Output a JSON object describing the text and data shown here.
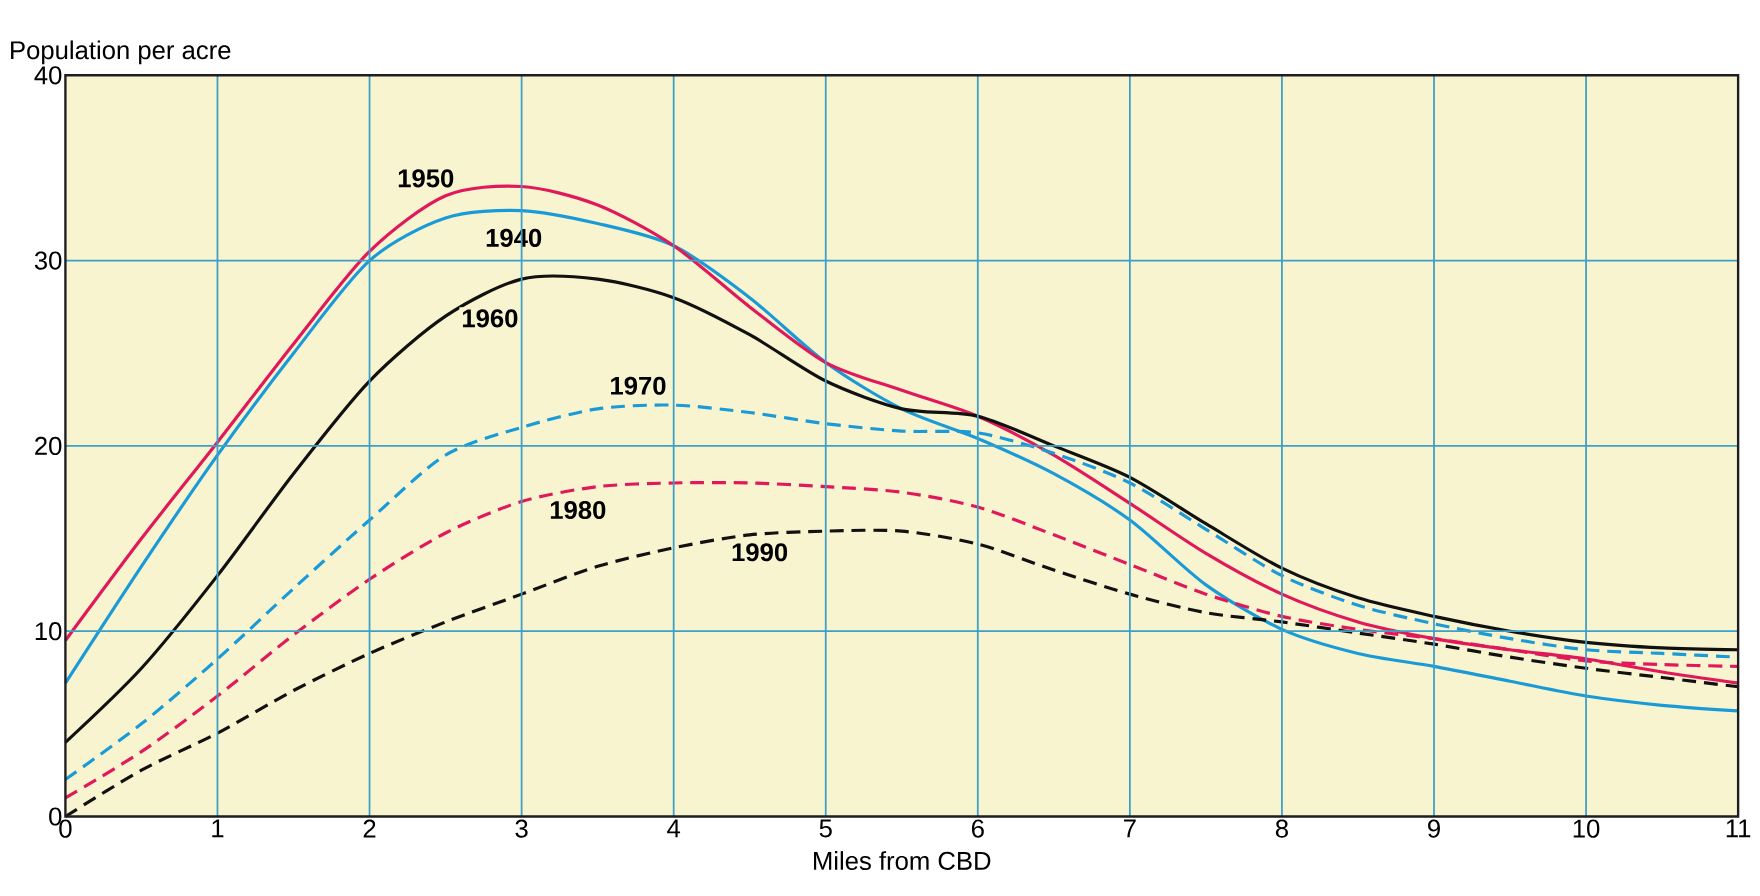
{
  "chart_data": {
    "type": "line",
    "x": [
      0,
      0.5,
      1,
      1.5,
      2,
      2.5,
      3,
      3.5,
      4,
      4.5,
      5,
      5.5,
      6,
      6.5,
      7,
      7.5,
      8,
      8.5,
      9,
      9.5,
      10,
      10.5,
      11
    ],
    "xlabel": "Miles from CBD",
    "ylabel": "Population per acre",
    "xlim": [
      0,
      11
    ],
    "ylim": [
      0,
      40
    ],
    "xticks": [
      0,
      1,
      2,
      3,
      4,
      5,
      6,
      7,
      8,
      9,
      10,
      11
    ],
    "yticks": [
      0,
      10,
      20,
      30,
      40
    ],
    "grid": true,
    "legend": false,
    "marker": "none",
    "series": [
      {
        "name": "1940",
        "color": "#1a9ad6",
        "line_style": "solid",
        "values": [
          7.2,
          13.5,
          19.5,
          25,
          30,
          32.3,
          32.7,
          32,
          30.8,
          28,
          24.5,
          22,
          20.4,
          18.5,
          16,
          12.5,
          10.1,
          8.8,
          8.1,
          7.3,
          6.5,
          6,
          5.7
        ]
      },
      {
        "name": "1950",
        "color": "#e0195a",
        "line_style": "solid",
        "values": [
          9.5,
          15,
          20.2,
          25.5,
          30.5,
          33.5,
          34,
          33,
          30.8,
          27.5,
          24.5,
          23,
          21.6,
          19.5,
          16.9,
          14.2,
          12,
          10.5,
          9.6,
          9,
          8.5,
          7.8,
          7.2
        ]
      },
      {
        "name": "1960",
        "color": "#111111",
        "line_style": "solid",
        "values": [
          4,
          8,
          13,
          18.5,
          23.5,
          27,
          29,
          29,
          28,
          26,
          23.5,
          22,
          21.6,
          20,
          18.3,
          15.8,
          13.4,
          11.8,
          10.8,
          10,
          9.4,
          9.1,
          9
        ]
      },
      {
        "name": "1970",
        "color": "#1a9ad6",
        "line_style": "dashed",
        "values": [
          2,
          5,
          8.5,
          12.3,
          16,
          19.5,
          21,
          22,
          22.2,
          21.8,
          21.2,
          20.8,
          20.7,
          19.6,
          18,
          15.5,
          13,
          11.4,
          10.4,
          9.6,
          9,
          8.8,
          8.6
        ]
      },
      {
        "name": "1980",
        "color": "#e0195a",
        "line_style": "dashed",
        "values": [
          1,
          3.5,
          6.5,
          9.8,
          12.8,
          15.3,
          17,
          17.8,
          18,
          18,
          17.8,
          17.5,
          16.7,
          15.2,
          13.6,
          12,
          10.8,
          10.1,
          9.6,
          9,
          8.4,
          8.2,
          8.1
        ]
      },
      {
        "name": "1990",
        "color": "#111111",
        "line_style": "dashed",
        "values": [
          0,
          2.5,
          4.5,
          6.8,
          8.8,
          10.5,
          12,
          13.5,
          14.5,
          15.2,
          15.4,
          15.4,
          14.7,
          13.3,
          12,
          11,
          10.5,
          9.9,
          9.3,
          8.6,
          8,
          7.5,
          7
        ]
      }
    ]
  }
}
